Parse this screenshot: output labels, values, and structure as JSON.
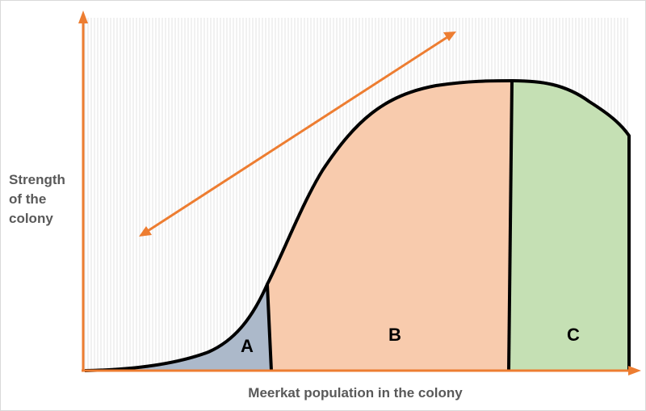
{
  "yaxis": {
    "label_lines": [
      "Strength",
      "of the",
      "colony"
    ]
  },
  "xaxis": {
    "label": "Meerkat population in the colony"
  },
  "regions": [
    {
      "id": "A",
      "label": "A",
      "color": "#acb9ca"
    },
    {
      "id": "B",
      "label": "B",
      "color": "#f8cbad"
    },
    {
      "id": "C",
      "label": "C",
      "color": "#c5e0b4"
    }
  ],
  "colors": {
    "axis": "#ed7d31",
    "double_arrow": "#ed7d31",
    "curve": "#000000",
    "hatch": "#e0e0e0"
  }
}
